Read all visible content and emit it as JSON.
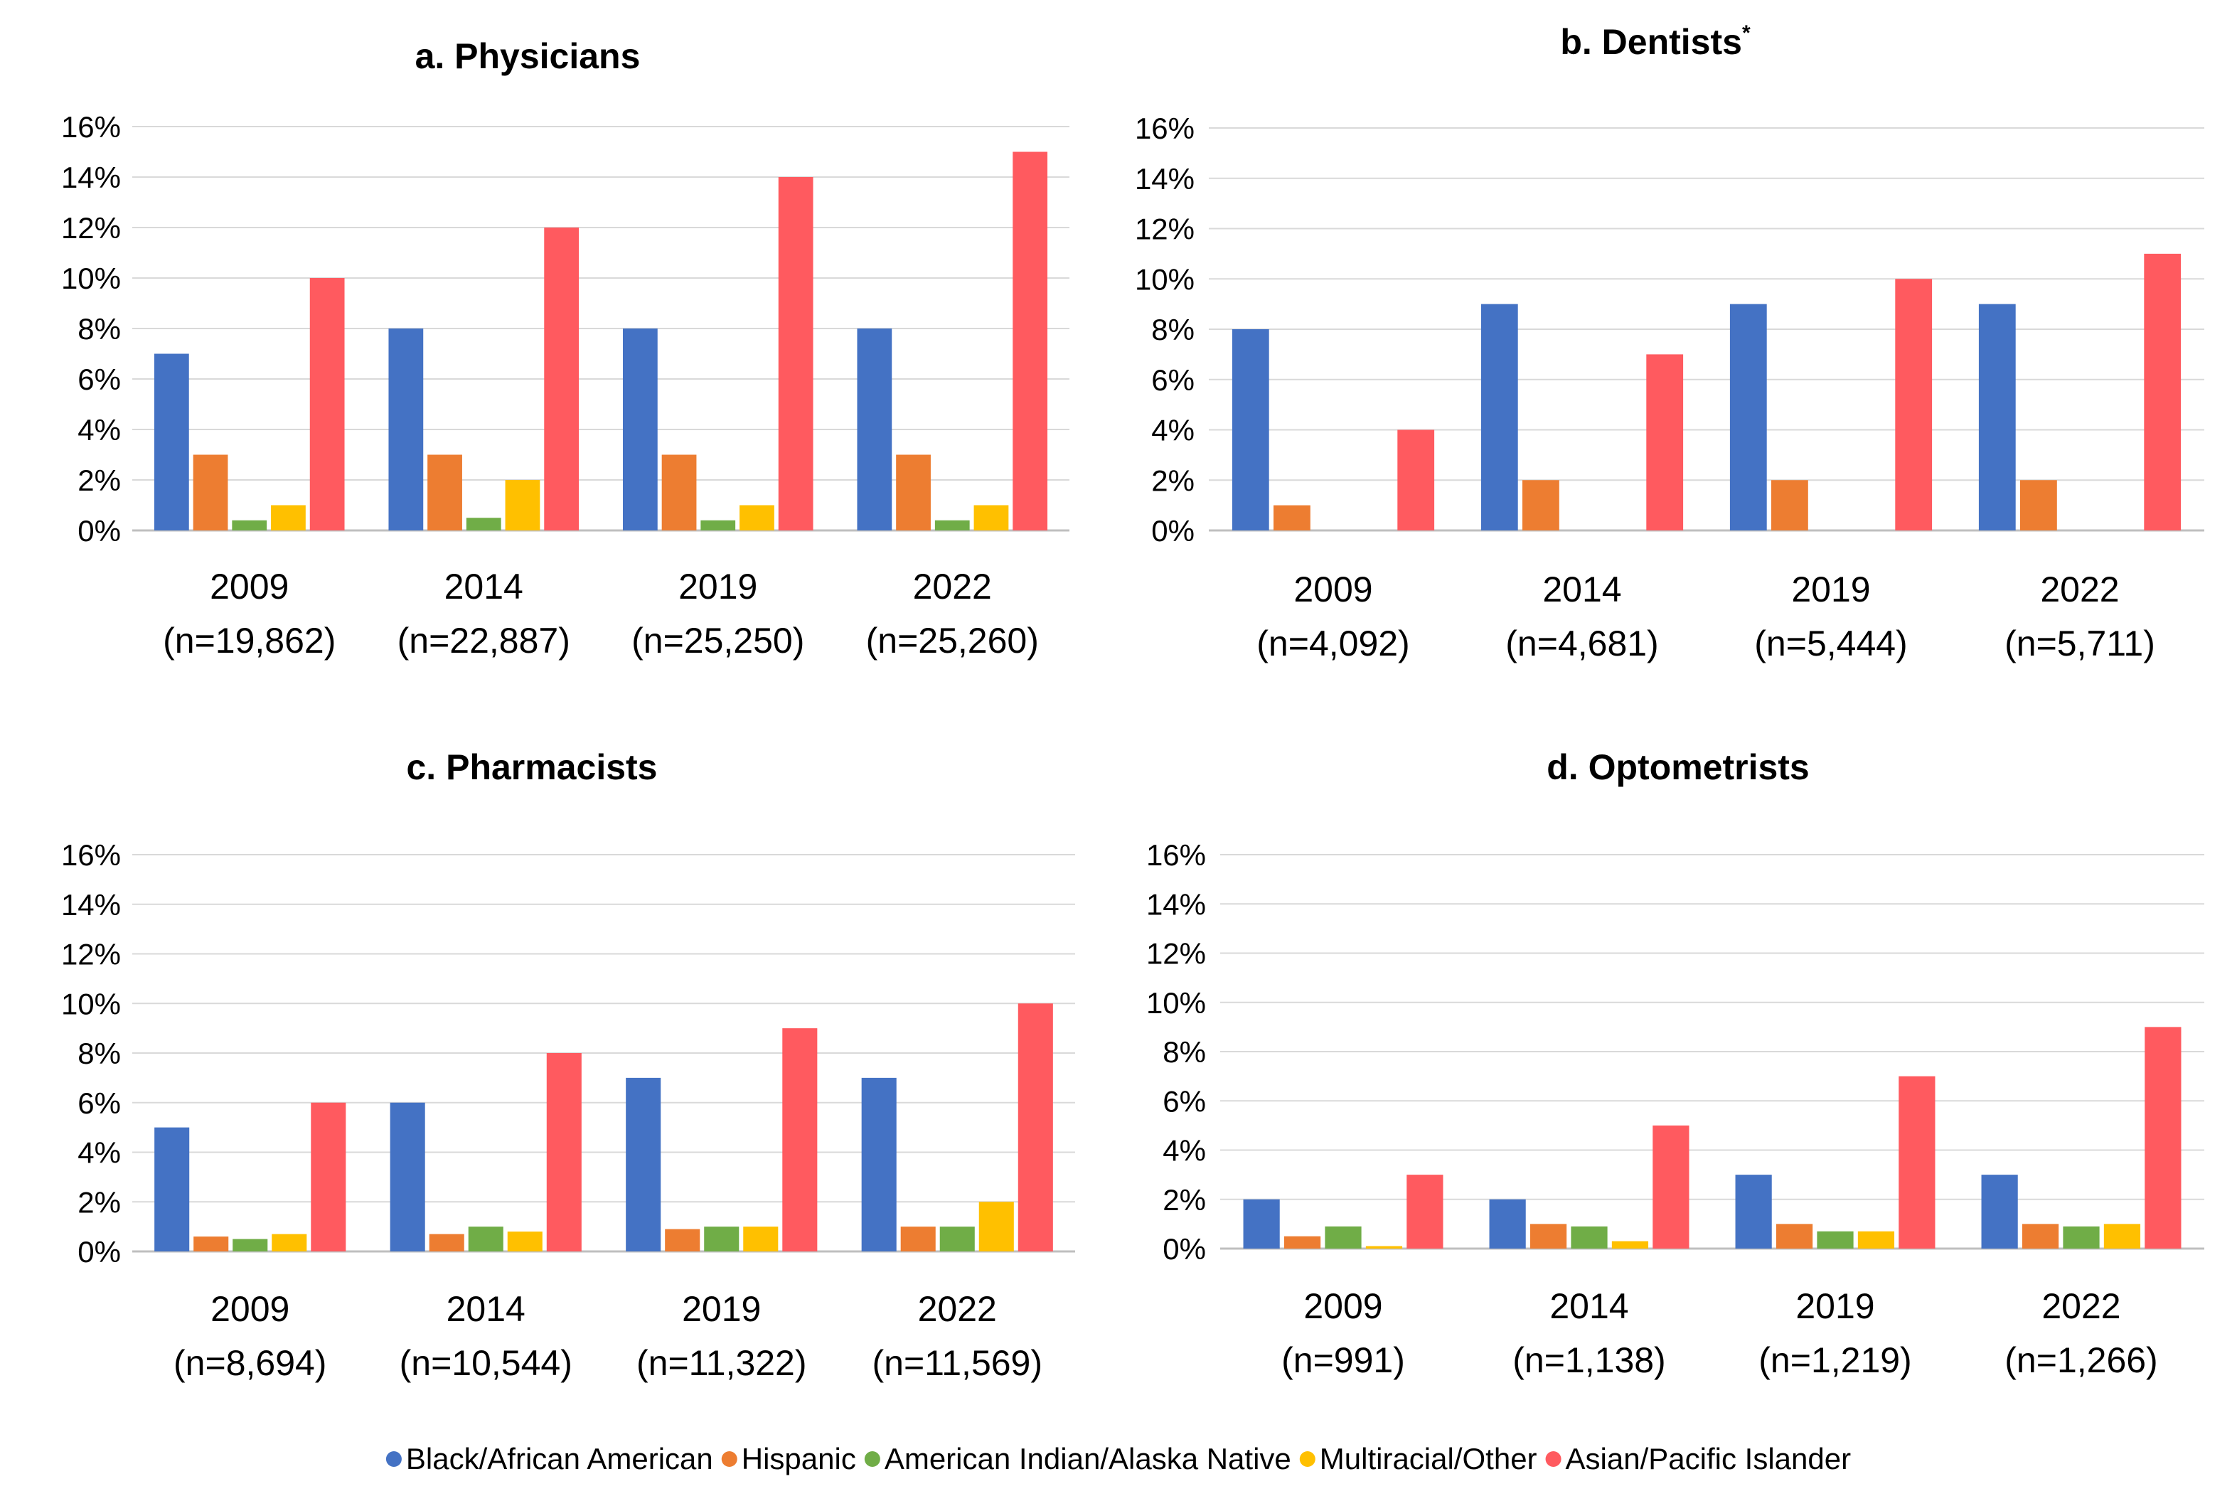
{
  "legend": {
    "placement": "bottom",
    "items": [
      {
        "label": "Black/African American",
        "color": "#4472C4"
      },
      {
        "label": "Hispanic",
        "color": "#ED7D31"
      },
      {
        "label": "American Indian/Alaska Native",
        "color": "#70AD47"
      },
      {
        "label": "Multiracial/Other",
        "color": "#FFC000"
      },
      {
        "label": "Asian/Pacific Islander",
        "color": "#FF5A5F"
      }
    ]
  },
  "chart_data": [
    {
      "type": "bar",
      "title": "a. Physicians",
      "title_note": "",
      "categories": [
        "2009",
        "2014",
        "2019",
        "2022"
      ],
      "category_counts": [
        "(n=19,862)",
        "(n=22,887)",
        "(n=25,250)",
        "(n=25,260)"
      ],
      "ylim": [
        0,
        16
      ],
      "yticks": [
        "0%",
        "2%",
        "4%",
        "6%",
        "8%",
        "10%",
        "12%",
        "14%",
        "16%"
      ],
      "grid": true,
      "series": [
        {
          "name": "Black/African American",
          "values": [
            7,
            8,
            8,
            8
          ]
        },
        {
          "name": "Hispanic",
          "values": [
            3,
            3,
            3,
            3
          ]
        },
        {
          "name": "American Indian/Alaska Native",
          "values": [
            0.4,
            0.5,
            0.4,
            0.4
          ]
        },
        {
          "name": "Multiracial/Other",
          "values": [
            1,
            2,
            1,
            1
          ]
        },
        {
          "name": "Asian/Pacific Islander",
          "values": [
            10,
            12,
            14,
            15
          ]
        }
      ]
    },
    {
      "type": "bar",
      "title": "b. Dentists",
      "title_note": "*",
      "categories": [
        "2009",
        "2014",
        "2019",
        "2022"
      ],
      "category_counts": [
        "(n=4,092)",
        "(n=4,681)",
        "(n=5,444)",
        "(n=5,711)"
      ],
      "ylim": [
        0,
        16
      ],
      "yticks": [
        "0%",
        "2%",
        "4%",
        "6%",
        "8%",
        "10%",
        "12%",
        "14%",
        "16%"
      ],
      "grid": true,
      "series": [
        {
          "name": "Black/African American",
          "values": [
            8,
            9,
            9,
            9
          ]
        },
        {
          "name": "Hispanic",
          "values": [
            1,
            2,
            2,
            2
          ]
        },
        {
          "name": "American Indian/Alaska Native",
          "values": [
            0,
            0,
            0,
            0
          ]
        },
        {
          "name": "Multiracial/Other",
          "values": [
            0,
            0,
            0,
            0
          ]
        },
        {
          "name": "Asian/Pacific Islander",
          "values": [
            4,
            7,
            10,
            11
          ]
        }
      ]
    },
    {
      "type": "bar",
      "title": "c. Pharmacists",
      "title_note": "",
      "categories": [
        "2009",
        "2014",
        "2019",
        "2022"
      ],
      "category_counts": [
        "(n=8,694)",
        "(n=10,544)",
        "(n=11,322)",
        "(n=11,569)"
      ],
      "ylim": [
        0,
        16
      ],
      "yticks": [
        "0%",
        "2%",
        "4%",
        "6%",
        "8%",
        "10%",
        "12%",
        "14%",
        "16%"
      ],
      "grid": true,
      "series": [
        {
          "name": "Black/African American",
          "values": [
            5,
            6,
            7,
            7
          ]
        },
        {
          "name": "Hispanic",
          "values": [
            0.6,
            0.7,
            0.9,
            1
          ]
        },
        {
          "name": "American Indian/Alaska Native",
          "values": [
            0.5,
            1,
            1,
            1
          ]
        },
        {
          "name": "Multiracial/Other",
          "values": [
            0.7,
            0.8,
            1,
            2
          ]
        },
        {
          "name": "Asian/Pacific Islander",
          "values": [
            6,
            8,
            9,
            10
          ]
        }
      ]
    },
    {
      "type": "bar",
      "title": "d. Optometrists",
      "title_note": "",
      "categories": [
        "2009",
        "2014",
        "2019",
        "2022"
      ],
      "category_counts": [
        "(n=991)",
        "(n=1,138)",
        "(n=1,219)",
        "(n=1,266)"
      ],
      "ylim": [
        0,
        16
      ],
      "yticks": [
        "0%",
        "2%",
        "4%",
        "6%",
        "8%",
        "10%",
        "12%",
        "14%",
        "16%"
      ],
      "grid": true,
      "series": [
        {
          "name": "Black/African American",
          "values": [
            2,
            2,
            3,
            3
          ]
        },
        {
          "name": "Hispanic",
          "values": [
            0.5,
            1,
            1,
            1
          ]
        },
        {
          "name": "American Indian/Alaska Native",
          "values": [
            0.9,
            0.9,
            0.7,
            0.9
          ]
        },
        {
          "name": "Multiracial/Other",
          "values": [
            0.1,
            0.3,
            0.7,
            1
          ]
        },
        {
          "name": "Asian/Pacific Islander",
          "values": [
            3,
            5,
            7,
            9
          ]
        }
      ]
    }
  ]
}
